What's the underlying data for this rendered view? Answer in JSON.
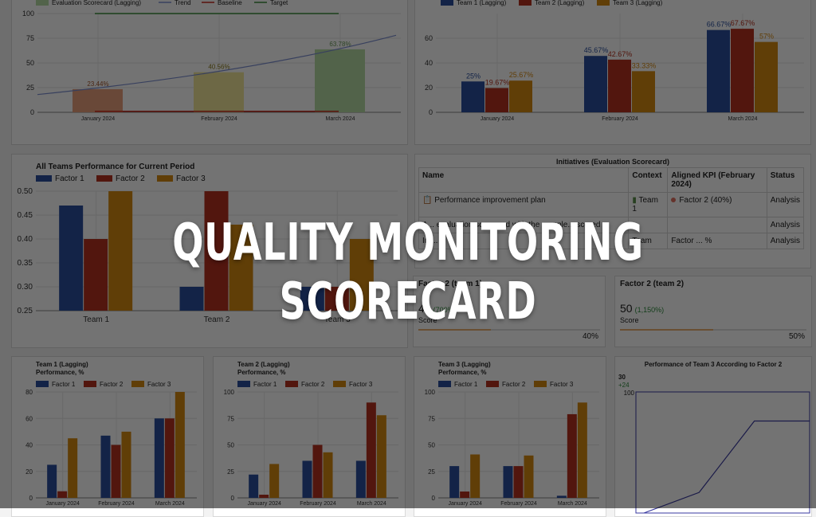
{
  "headline": "QUALITY MONITORING SCORECARD",
  "colors": {
    "factor1": "#2a4f9e",
    "factor2": "#b5311f",
    "factor3": "#d68910",
    "eval": "#e8a07c",
    "evalLight": "#f2e79a",
    "evalGreen": "#b7dba5",
    "trend": "#7c8fd0",
    "baseline": "#c8281c",
    "target": "#3a8d3a"
  },
  "chart_data": [
    {
      "type": "bar",
      "title": "",
      "legend": [
        "Evaluation Scorecard (Lagging)",
        "Trend",
        "Baseline",
        "Target"
      ],
      "categories": [
        "January 2024",
        "February 2024",
        "March 2024"
      ],
      "values": [
        23.44,
        40.56,
        63.78
      ],
      "data_labels": [
        "23.44%",
        "40.56%",
        "63.78%"
      ],
      "ylim": [
        0,
        100
      ],
      "yticks": [
        0,
        25,
        50,
        75,
        100
      ]
    },
    {
      "type": "bar",
      "title": "",
      "categories": [
        "January 2024",
        "February 2024",
        "March 2024"
      ],
      "series": [
        {
          "name": "Team 1 (Lagging)",
          "values": [
            25,
            45.67,
            66.67
          ],
          "labels": [
            "25%",
            "45.67%",
            "66.67%"
          ]
        },
        {
          "name": "Team 2 (Lagging)",
          "values": [
            19.67,
            42.67,
            67.67
          ],
          "labels": [
            "19.67%",
            "42.67%",
            "67.67%"
          ]
        },
        {
          "name": "Team 3 (Lagging)",
          "values": [
            25.67,
            33.33,
            57
          ],
          "labels": [
            "25.67%",
            "33.33%",
            "57%"
          ]
        }
      ],
      "ylim": [
        0,
        80
      ],
      "yticks": [
        0,
        20,
        40,
        60
      ]
    },
    {
      "type": "bar",
      "title": "All Teams Performance for Current Period",
      "categories": [
        "Team 1",
        "Team 2",
        "Team 3"
      ],
      "series": [
        {
          "name": "Factor 1",
          "values": [
            0.47,
            0.3,
            0.3
          ]
        },
        {
          "name": "Factor 2",
          "values": [
            0.4,
            0.5,
            0.3
          ]
        },
        {
          "name": "Factor 3",
          "values": [
            0.5,
            0.43,
            0.4
          ]
        }
      ],
      "ylim": [
        0.25,
        0.5
      ],
      "yticks": [
        0.25,
        0.3,
        0.35,
        0.4,
        0.45,
        0.5
      ],
      "ytick_labels": [
        "0.25",
        "0.30",
        "0.35",
        "0.40",
        "0.45",
        "0.50"
      ]
    },
    {
      "type": "bar",
      "title": "Team 1 (Lagging) Performance, %",
      "categories": [
        "January 2024",
        "February 2024",
        "March 2024"
      ],
      "series": [
        {
          "name": "Factor 1",
          "values": [
            25,
            47,
            60
          ]
        },
        {
          "name": "Factor 2",
          "values": [
            5,
            40,
            60
          ]
        },
        {
          "name": "Factor 3",
          "values": [
            45,
            50,
            80
          ]
        }
      ],
      "ylim": [
        0,
        80
      ],
      "yticks": [
        0,
        20,
        40,
        60,
        80
      ]
    },
    {
      "type": "bar",
      "title": "Team 2 (Lagging) Performance, %",
      "categories": [
        "January 2024",
        "February 2024",
        "March 2024"
      ],
      "series": [
        {
          "name": "Factor 1",
          "values": [
            22,
            35,
            35
          ]
        },
        {
          "name": "Factor 2",
          "values": [
            3,
            50,
            90
          ]
        },
        {
          "name": "Factor 3",
          "values": [
            32,
            43,
            78
          ]
        }
      ],
      "ylim": [
        0,
        100
      ],
      "yticks": [
        0,
        25,
        50,
        75,
        100
      ]
    },
    {
      "type": "bar",
      "title": "Team 3 (Lagging) Performance, %",
      "categories": [
        "January 2024",
        "February 2024",
        "March 2024"
      ],
      "series": [
        {
          "name": "Factor 1",
          "values": [
            30,
            30,
            2
          ]
        },
        {
          "name": "Factor 2",
          "values": [
            6,
            30,
            79
          ]
        },
        {
          "name": "Factor 3",
          "values": [
            41,
            40,
            90
          ]
        }
      ],
      "ylim": [
        0,
        100
      ],
      "yticks": [
        0,
        25,
        50,
        75,
        100
      ]
    },
    {
      "type": "line",
      "title": "Performance of Team 3 According to Factor 2",
      "value_text": "30",
      "delta_text": "+24",
      "values": [
        0,
        17,
        76,
        76
      ],
      "ylim": [
        0,
        100
      ],
      "yticks": [
        100
      ]
    }
  ],
  "initiatives": {
    "title": "Initiatives (Evaluation Scorecard)",
    "headers": [
      "Name",
      "Context",
      "Aligned KPI (February 2024)",
      "Status"
    ],
    "rows": [
      {
        "name": "Performance improvement plan",
        "context": "Team 1",
        "kpi": "Factor 2 (40%)",
        "status": "Analysis"
      },
      {
        "name": "A... evaluation scorecard with the comple... scored",
        "context": "",
        "kpi": "",
        "status": "Analysis"
      },
      {
        "name": "Im...",
        "context": "Team",
        "kpi": "Factor ... %",
        "status": "Analysis"
      }
    ]
  },
  "kpis": [
    {
      "title": "Factor 2 (team 1)",
      "value": "40",
      "pct": "(700%)",
      "label": "Score",
      "progress": "40%",
      "fill": 0.4
    },
    {
      "title": "Factor 2 (team 2)",
      "value": "50",
      "pct": "(1,150%)",
      "label": "Score",
      "progress": "50%",
      "fill": 0.5
    }
  ]
}
